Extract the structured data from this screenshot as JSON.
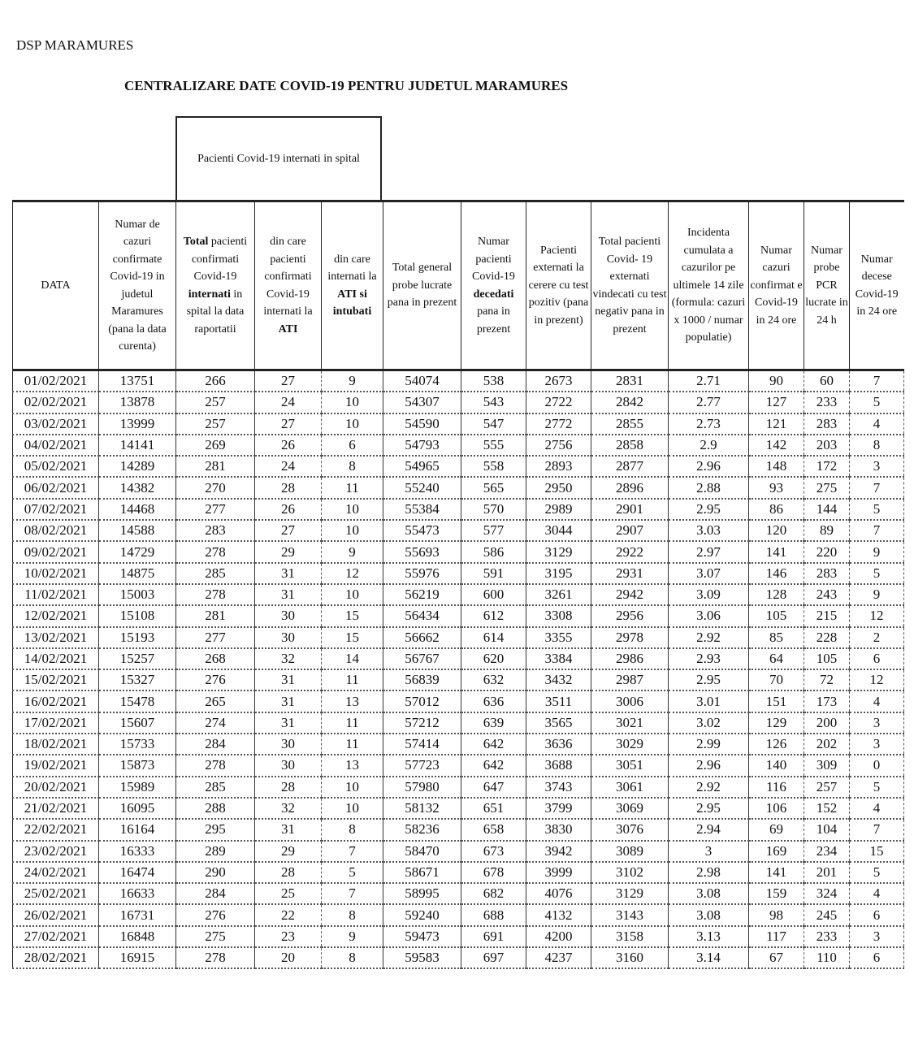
{
  "organization": "DSP MARAMURES",
  "title": "CENTRALIZARE DATE COVID-19 PENTRU JUDETUL MARAMURES",
  "group_header": "Pacienti Covid-19 internati in spital",
  "columns": [
    [
      {
        "t": "DATA"
      }
    ],
    [
      {
        "t": "Numar de cazuri confirmate Covid-19 in judetul Maramures (pana la data curenta)"
      }
    ],
    [
      {
        "t": "Total",
        "b": true
      },
      {
        "t": " pacienti confirmati Covid-19 "
      },
      {
        "t": "internati",
        "b": true
      },
      {
        "t": " in spital la data raportatii"
      }
    ],
    [
      {
        "t": "din care pacienti confirmati Covid-19 internati la "
      },
      {
        "t": "ATI",
        "b": true
      }
    ],
    [
      {
        "t": "din care internati la "
      },
      {
        "t": "ATI si intubati",
        "b": true
      }
    ],
    [
      {
        "t": "Total general probe lucrate pana in prezent"
      }
    ],
    [
      {
        "t": "Numar pacienti Covid-19 "
      },
      {
        "t": "decedati",
        "b": true
      },
      {
        "t": " pana in prezent"
      }
    ],
    [
      {
        "t": "Pacienti externati la cerere cu test pozitiv (pana in prezent)"
      }
    ],
    [
      {
        "t": "Total pacienti Covid- 19 externati vindecati cu test negativ pana in prezent"
      }
    ],
    [
      {
        "t": "Incidenta cumulata a cazurilor pe ultimele 14 zile (formula: cazuri x 1000 / numar populatie)"
      }
    ],
    [
      {
        "t": "Numar cazuri confirmat e Covid-19 in 24 ore"
      }
    ],
    [
      {
        "t": "Numar probe PCR lucrate in 24 h"
      }
    ],
    [
      {
        "t": "Numar decese Covid-19 in 24 ore"
      }
    ]
  ],
  "rows": [
    [
      "01/02/2021",
      "13751",
      "266",
      "27",
      "9",
      "54074",
      "538",
      "2673",
      "2831",
      "2.71",
      "90",
      "60",
      "7"
    ],
    [
      "02/02/2021",
      "13878",
      "257",
      "24",
      "10",
      "54307",
      "543",
      "2722",
      "2842",
      "2.77",
      "127",
      "233",
      "5"
    ],
    [
      "03/02/2021",
      "13999",
      "257",
      "27",
      "10",
      "54590",
      "547",
      "2772",
      "2855",
      "2.73",
      "121",
      "283",
      "4"
    ],
    [
      "04/02/2021",
      "14141",
      "269",
      "26",
      "6",
      "54793",
      "555",
      "2756",
      "2858",
      "2.9",
      "142",
      "203",
      "8"
    ],
    [
      "05/02/2021",
      "14289",
      "281",
      "24",
      "8",
      "54965",
      "558",
      "2893",
      "2877",
      "2.96",
      "148",
      "172",
      "3"
    ],
    [
      "06/02/2021",
      "14382",
      "270",
      "28",
      "11",
      "55240",
      "565",
      "2950",
      "2896",
      "2.88",
      "93",
      "275",
      "7"
    ],
    [
      "07/02/2021",
      "14468",
      "277",
      "26",
      "10",
      "55384",
      "570",
      "2989",
      "2901",
      "2.95",
      "86",
      "144",
      "5"
    ],
    [
      "08/02/2021",
      "14588",
      "283",
      "27",
      "10",
      "55473",
      "577",
      "3044",
      "2907",
      "3.03",
      "120",
      "89",
      "7"
    ],
    [
      "09/02/2021",
      "14729",
      "278",
      "29",
      "9",
      "55693",
      "586",
      "3129",
      "2922",
      "2.97",
      "141",
      "220",
      "9"
    ],
    [
      "10/02/2021",
      "14875",
      "285",
      "31",
      "12",
      "55976",
      "591",
      "3195",
      "2931",
      "3.07",
      "146",
      "283",
      "5"
    ],
    [
      "11/02/2021",
      "15003",
      "278",
      "31",
      "10",
      "56219",
      "600",
      "3261",
      "2942",
      "3.09",
      "128",
      "243",
      "9"
    ],
    [
      "12/02/2021",
      "15108",
      "281",
      "30",
      "15",
      "56434",
      "612",
      "3308",
      "2956",
      "3.06",
      "105",
      "215",
      "12"
    ],
    [
      "13/02/2021",
      "15193",
      "277",
      "30",
      "15",
      "56662",
      "614",
      "3355",
      "2978",
      "2.92",
      "85",
      "228",
      "2"
    ],
    [
      "14/02/2021",
      "15257",
      "268",
      "32",
      "14",
      "56767",
      "620",
      "3384",
      "2986",
      "2.93",
      "64",
      "105",
      "6"
    ],
    [
      "15/02/2021",
      "15327",
      "276",
      "31",
      "11",
      "56839",
      "632",
      "3432",
      "2987",
      "2.95",
      "70",
      "72",
      "12"
    ],
    [
      "16/02/2021",
      "15478",
      "265",
      "31",
      "13",
      "57012",
      "636",
      "3511",
      "3006",
      "3.01",
      "151",
      "173",
      "4"
    ],
    [
      "17/02/2021",
      "15607",
      "274",
      "31",
      "11",
      "57212",
      "639",
      "3565",
      "3021",
      "3.02",
      "129",
      "200",
      "3"
    ],
    [
      "18/02/2021",
      "15733",
      "284",
      "30",
      "11",
      "57414",
      "642",
      "3636",
      "3029",
      "2.99",
      "126",
      "202",
      "3"
    ],
    [
      "19/02/2021",
      "15873",
      "278",
      "30",
      "13",
      "57723",
      "642",
      "3688",
      "3051",
      "2.96",
      "140",
      "309",
      "0"
    ],
    [
      "20/02/2021",
      "15989",
      "285",
      "28",
      "10",
      "57980",
      "647",
      "3743",
      "3061",
      "2.92",
      "116",
      "257",
      "5"
    ],
    [
      "21/02/2021",
      "16095",
      "288",
      "32",
      "10",
      "58132",
      "651",
      "3799",
      "3069",
      "2.95",
      "106",
      "152",
      "4"
    ],
    [
      "22/02/2021",
      "16164",
      "295",
      "31",
      "8",
      "58236",
      "658",
      "3830",
      "3076",
      "2.94",
      "69",
      "104",
      "7"
    ],
    [
      "23/02/2021",
      "16333",
      "289",
      "29",
      "7",
      "58470",
      "673",
      "3942",
      "3089",
      "3",
      "169",
      "234",
      "15"
    ],
    [
      "24/02/2021",
      "16474",
      "290",
      "28",
      "5",
      "58671",
      "678",
      "3999",
      "3102",
      "2.98",
      "141",
      "201",
      "5"
    ],
    [
      "25/02/2021",
      "16633",
      "284",
      "25",
      "7",
      "58995",
      "682",
      "4076",
      "3129",
      "3.08",
      "159",
      "324",
      "4"
    ],
    [
      "26/02/2021",
      "16731",
      "276",
      "22",
      "8",
      "59240",
      "688",
      "4132",
      "3143",
      "3.08",
      "98",
      "245",
      "6"
    ],
    [
      "27/02/2021",
      "16848",
      "275",
      "23",
      "9",
      "59473",
      "691",
      "4200",
      "3158",
      "3.13",
      "117",
      "233",
      "3"
    ],
    [
      "28/02/2021",
      "16915",
      "278",
      "20",
      "8",
      "59583",
      "697",
      "4237",
      "3160",
      "3.14",
      "67",
      "110",
      "6"
    ]
  ]
}
